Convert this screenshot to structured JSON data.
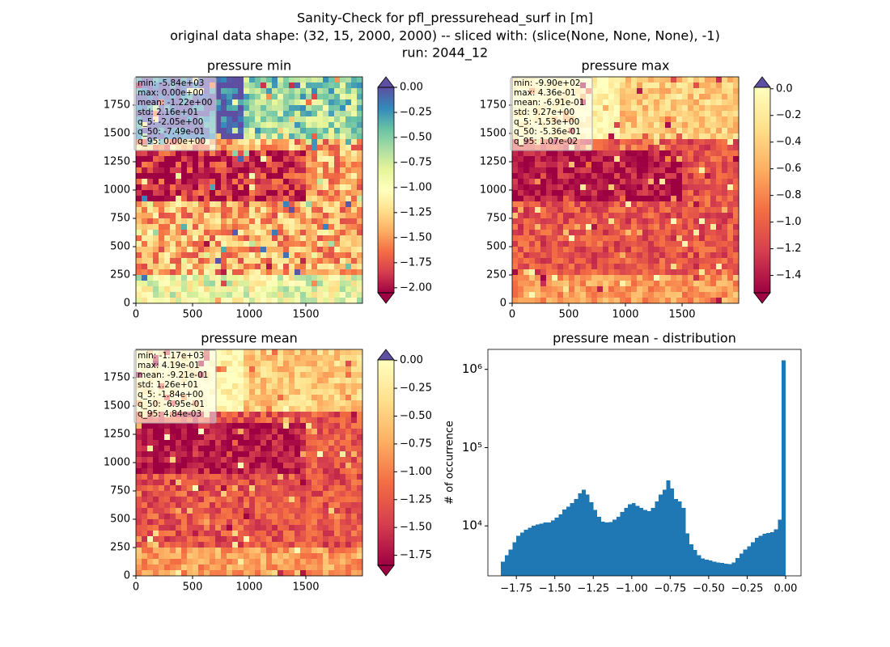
{
  "suptitle": [
    "Sanity-Check for pfl_pressurehead_surf in [m]",
    "original data shape: (32, 15, 2000, 2000) -- sliced with: (slice(None, None, None), -1)",
    "run: 2044_12"
  ],
  "chart_data": [
    {
      "type": "heatmap",
      "title": "pressure min",
      "xlim": [
        0,
        2000
      ],
      "ylim": [
        0,
        2000
      ],
      "xticks": [
        0,
        500,
        1000,
        1500
      ],
      "yticks": [
        0,
        250,
        500,
        750,
        1000,
        1250,
        1500,
        1750
      ],
      "stats": [
        "min: -5.84e+03",
        "max: 0.00e+00",
        "mean: -1.22e+00",
        "std: 2.16e+01",
        "q_5: -2.05e+00",
        "q_50: -7.49e-01",
        "q_95: 0.00e+00"
      ],
      "colorbar": {
        "lim": [
          -2.05,
          0.0
        ],
        "ticks": [
          {
            "value": 0,
            "label": "0.00"
          },
          {
            "value": -0.25,
            "label": "−0.25"
          },
          {
            "value": -0.5,
            "label": "−0.50"
          },
          {
            "value": -0.75,
            "label": "−0.75"
          },
          {
            "value": -1,
            "label": "−1.00"
          },
          {
            "value": -1.25,
            "label": "−1.25"
          },
          {
            "value": -1.5,
            "label": "−1.50"
          },
          {
            "value": -1.75,
            "label": "−1.75"
          },
          {
            "value": -2,
            "label": "−2.00"
          }
        ],
        "colors": [
          "#9e0142",
          "#d53e4f",
          "#f46d43",
          "#fdae61",
          "#fee08b",
          "#ffffbf",
          "#e6f598",
          "#abdda4",
          "#66c2a5",
          "#3288bd",
          "#5e4fa2"
        ],
        "over": "#5e4fa2",
        "under": "#9e0142"
      }
    },
    {
      "type": "heatmap",
      "title": "pressure max",
      "xlim": [
        0,
        2000
      ],
      "ylim": [
        0,
        2000
      ],
      "xticks": [
        0,
        500,
        1000,
        1500
      ],
      "yticks": [
        0,
        250,
        500,
        750,
        1000,
        1250,
        1500,
        1750
      ],
      "stats": [
        "min: -9.90e+02",
        "max: 4.36e-01",
        "mean: -6.91e-01",
        "std: 9.27e+00",
        "q_5: -1.53e+00",
        "q_50: -5.36e-01",
        "q_95: 1.07e-02"
      ],
      "colorbar": {
        "lim": [
          -1.53,
          0.0107
        ],
        "ticks": [
          {
            "value": 0,
            "label": "0.0"
          },
          {
            "value": -0.2,
            "label": "−0.2"
          },
          {
            "value": -0.4,
            "label": "−0.4"
          },
          {
            "value": -0.6,
            "label": "−0.6"
          },
          {
            "value": -0.8,
            "label": "−0.8"
          },
          {
            "value": -1,
            "label": "−1.0"
          },
          {
            "value": -1.2,
            "label": "−1.2"
          },
          {
            "value": -1.4,
            "label": "−1.4"
          }
        ],
        "colors": [
          "#9e0142",
          "#d53e4f",
          "#f46d43",
          "#fdae61",
          "#fee08b",
          "#ffffbf"
        ],
        "over": "#5e4fa2",
        "under": "#9e0142"
      }
    },
    {
      "type": "heatmap",
      "title": "pressure mean",
      "xlim": [
        0,
        2000
      ],
      "ylim": [
        0,
        2000
      ],
      "xticks": [
        0,
        500,
        1000,
        1500
      ],
      "yticks": [
        0,
        250,
        500,
        750,
        1000,
        1250,
        1500,
        1750
      ],
      "stats": [
        "min: -1.17e+03",
        "max: 4.19e-01",
        "mean: -9.21e-01",
        "std: 1.26e+01",
        "q_5: -1.84e+00",
        "q_50: -6.95e-01",
        "q_95: 4.84e-03"
      ],
      "colorbar": {
        "lim": [
          -1.84,
          0.00484
        ],
        "ticks": [
          {
            "value": 0,
            "label": "0.00"
          },
          {
            "value": -0.25,
            "label": "−0.25"
          },
          {
            "value": -0.5,
            "label": "−0.50"
          },
          {
            "value": -0.75,
            "label": "−0.75"
          },
          {
            "value": -1,
            "label": "−1.00"
          },
          {
            "value": -1.25,
            "label": "−1.25"
          },
          {
            "value": -1.5,
            "label": "−1.50"
          },
          {
            "value": -1.75,
            "label": "−1.75"
          }
        ],
        "colors": [
          "#9e0142",
          "#d53e4f",
          "#f46d43",
          "#fdae61",
          "#fee08b",
          "#ffffbf"
        ],
        "over": "#5e4fa2",
        "under": "#9e0142"
      }
    },
    {
      "type": "histogram",
      "title": "pressure mean - distribution",
      "ylabel": "# of occurrence",
      "color": "#1f77b4",
      "log_y": true,
      "xlim": [
        -1.935,
        0.1
      ],
      "ylim": [
        2300,
        1800000
      ],
      "xticks": [
        {
          "value": -1.75,
          "label": "−1.75"
        },
        {
          "value": -1.5,
          "label": "−1.50"
        },
        {
          "value": -1.25,
          "label": "−1.25"
        },
        {
          "value": -1,
          "label": "−1.00"
        },
        {
          "value": -0.75,
          "label": "−0.75"
        },
        {
          "value": -0.5,
          "label": "−0.50"
        },
        {
          "value": -0.25,
          "label": "−0.25"
        },
        {
          "value": 0,
          "label": "0.00"
        }
      ],
      "yticks": [
        {
          "value": 10000,
          "label": "10⁴"
        },
        {
          "value": 100000,
          "label": "10⁵"
        },
        {
          "value": 1000000,
          "label": "10⁶"
        }
      ],
      "bins": [
        -1.85,
        -1.825,
        -1.8,
        -1.775,
        -1.75,
        -1.725,
        -1.7,
        -1.675,
        -1.65,
        -1.625,
        -1.6,
        -1.575,
        -1.55,
        -1.525,
        -1.5,
        -1.475,
        -1.45,
        -1.425,
        -1.4,
        -1.375,
        -1.35,
        -1.325,
        -1.3,
        -1.275,
        -1.25,
        -1.225,
        -1.2,
        -1.175,
        -1.15,
        -1.125,
        -1.1,
        -1.075,
        -1.05,
        -1.025,
        -1.0,
        -0.975,
        -0.95,
        -0.925,
        -0.9,
        -0.875,
        -0.85,
        -0.825,
        -0.8,
        -0.775,
        -0.75,
        -0.725,
        -0.7,
        -0.675,
        -0.65,
        -0.625,
        -0.6,
        -0.575,
        -0.55,
        -0.525,
        -0.5,
        -0.475,
        -0.45,
        -0.425,
        -0.4,
        -0.375,
        -0.35,
        -0.325,
        -0.3,
        -0.275,
        -0.25,
        -0.225,
        -0.2,
        -0.175,
        -0.15,
        -0.125,
        -0.1,
        -0.075,
        -0.05,
        -0.025,
        0.0
      ],
      "values": [
        3500,
        4200,
        5000,
        6200,
        7500,
        8200,
        8900,
        9500,
        10000,
        10400,
        10700,
        11000,
        11000,
        11800,
        12700,
        14000,
        16100,
        17500,
        19500,
        22000,
        26000,
        29000,
        25000,
        20000,
        16000,
        13000,
        11300,
        11000,
        11200,
        12000,
        13000,
        15000,
        17000,
        19000,
        19500,
        18000,
        17000,
        16000,
        15400,
        17000,
        20500,
        25000,
        29000,
        38000,
        30000,
        22000,
        20500,
        17000,
        8000,
        5800,
        4900,
        4200,
        3850,
        3700,
        3600,
        3500,
        3400,
        3350,
        3300,
        3250,
        3400,
        3900,
        4400,
        5000,
        5500,
        6200,
        7000,
        7500,
        7900,
        8100,
        8300,
        9000,
        12000,
        1300000
      ]
    }
  ]
}
